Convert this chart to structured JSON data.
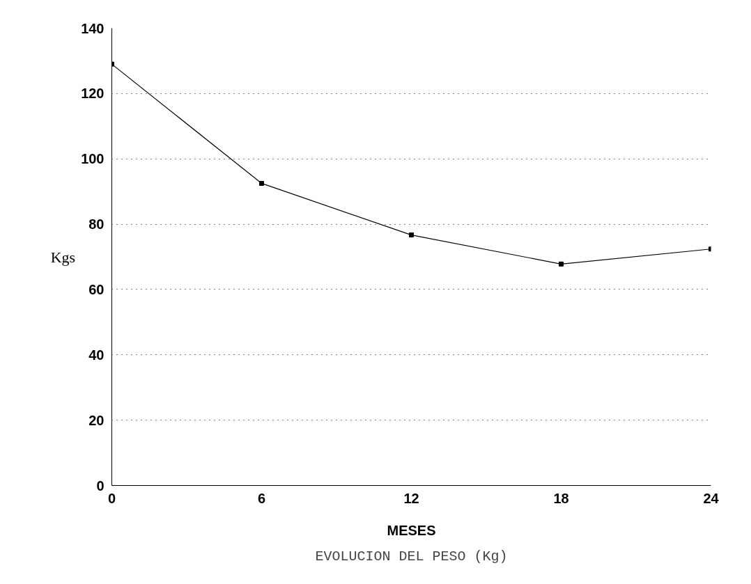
{
  "chart_data": {
    "type": "line",
    "title": "EVOLUCION DEL PESO (Kg)",
    "xlabel": "MESES",
    "ylabel": "Kgs",
    "x": [
      0,
      6,
      12,
      18,
      24
    ],
    "series": [
      {
        "color": "#000000",
        "values": [
          129,
          92.5,
          76.7,
          67.8,
          72.4
        ]
      }
    ],
    "xlim": [
      0,
      24
    ],
    "xticks": [
      0,
      6,
      12,
      18,
      24
    ],
    "ylim": [
      0,
      140
    ],
    "yticks": [
      0,
      20,
      40,
      60,
      80,
      100,
      120,
      140
    ],
    "grid": "y",
    "marker": "square",
    "line_style": "solid"
  }
}
